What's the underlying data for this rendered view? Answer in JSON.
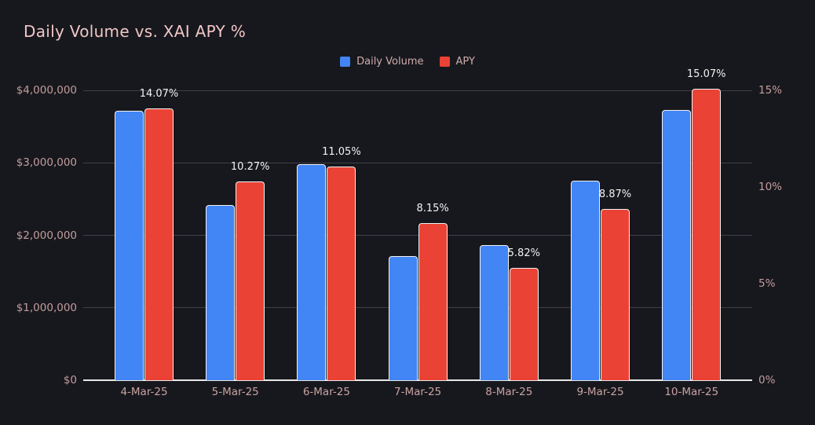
{
  "title": "Daily Volume vs. XAI APY %",
  "legend": {
    "items": [
      {
        "label": "Daily Volume",
        "color": "#4285F4"
      },
      {
        "label": "APY",
        "color": "#EA4335"
      }
    ]
  },
  "colors": {
    "background": "#17181d",
    "volume_bar": "#4285F4",
    "apy_bar": "#EA4335",
    "bar_border": "#f2f2f2",
    "gridline": "#3e4147",
    "baseline": "#e8e8e8",
    "title_text": "#f0c6c6",
    "axis_text": "#c49d9d",
    "data_label_text": "#f2f2f2"
  },
  "chart_data": {
    "type": "bar",
    "title": "Daily Volume vs. XAI APY %",
    "categories": [
      "4-Mar-25",
      "5-Mar-25",
      "6-Mar-25",
      "7-Mar-25",
      "8-Mar-25",
      "9-Mar-25",
      "10-Mar-25"
    ],
    "series": [
      {
        "name": "Daily Volume",
        "axis": "left",
        "color": "#4285F4",
        "values": [
          3720000,
          2420000,
          2980000,
          1710000,
          1860000,
          2750000,
          3730000
        ]
      },
      {
        "name": "APY",
        "axis": "right",
        "color": "#EA4335",
        "values": [
          14.07,
          10.27,
          11.05,
          8.15,
          5.82,
          8.87,
          15.07
        ],
        "data_labels": [
          "14.07%",
          "10.27%",
          "11.05%",
          "8.15%",
          "5.82%",
          "8.87%",
          "15.07%"
        ]
      }
    ],
    "left_axis": {
      "min": 0,
      "max": 4000000,
      "ticks": [
        {
          "label": "$4,000,000",
          "value": 4000000
        },
        {
          "label": "$3,000,000",
          "value": 3000000
        },
        {
          "label": "$2,000,000",
          "value": 2000000
        },
        {
          "label": "$1,000,000",
          "value": 1000000
        },
        {
          "label": "$0",
          "value": 0
        }
      ]
    },
    "right_axis": {
      "min": 0,
      "max": 15,
      "ticks": [
        {
          "label": "15%",
          "value": 15
        },
        {
          "label": "10%",
          "value": 10
        },
        {
          "label": "5%",
          "value": 5
        },
        {
          "label": "0%",
          "value": 0
        }
      ]
    },
    "grid": "horizontal-only",
    "legend_position": "top-center"
  }
}
